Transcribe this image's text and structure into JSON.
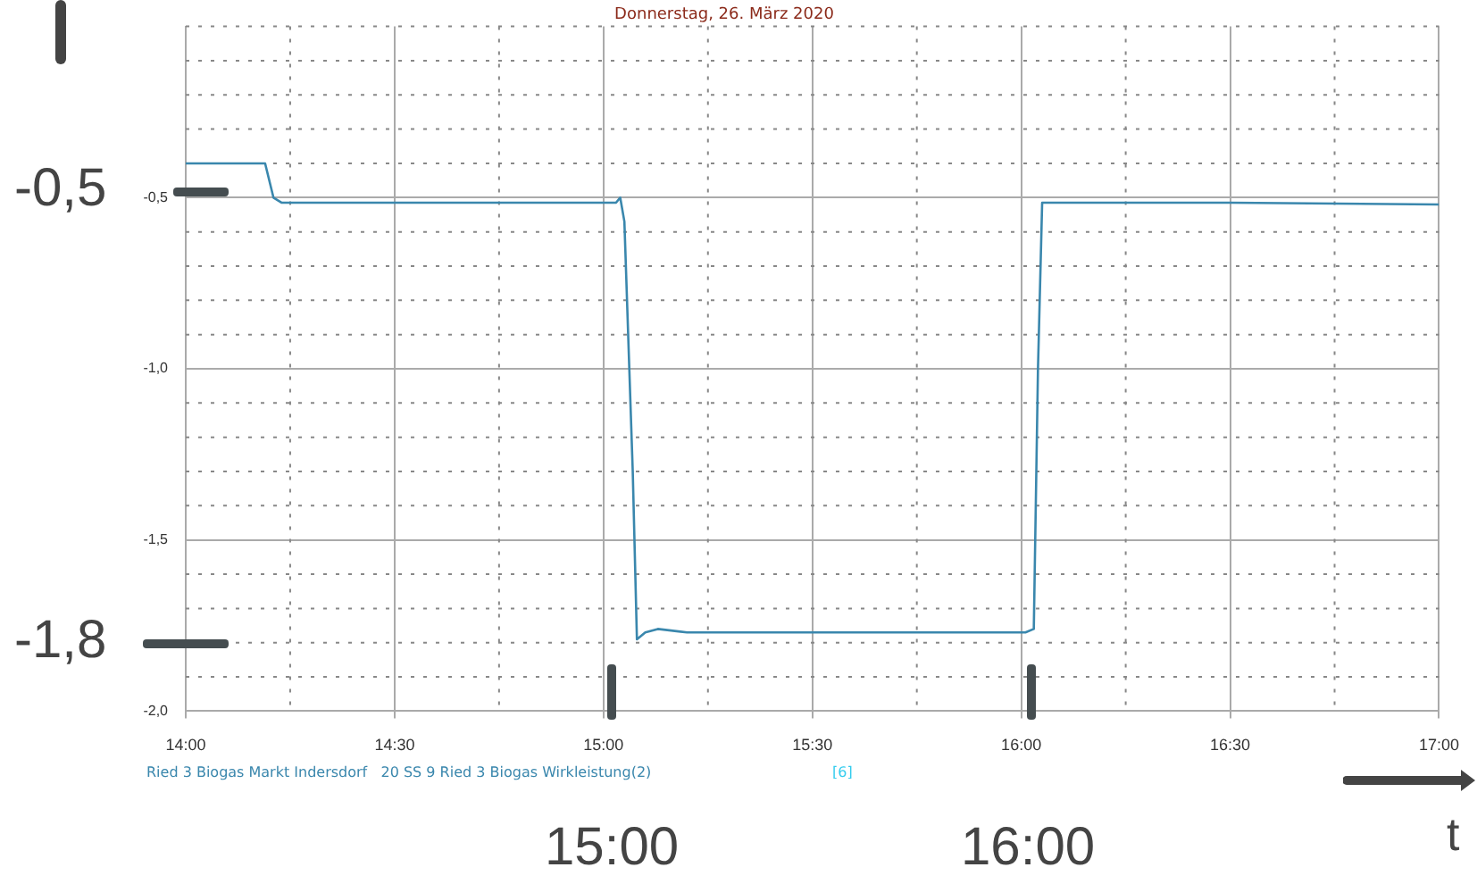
{
  "chart_data": {
    "type": "line",
    "title": "Donnerstag, 26. März 2020",
    "xlabel": "t",
    "x": [
      14.0,
      14.19,
      14.21,
      14.23,
      15.03,
      15.04,
      15.05,
      15.07,
      15.08,
      15.1,
      15.13,
      15.2,
      15.5,
      15.8,
      16.01,
      16.03,
      16.04,
      16.05,
      16.5,
      17.0
    ],
    "series": [
      {
        "name": "Ried 3 Biogas Markt Indersdorf   20 SS 9 Ried 3 Biogas Wirkleistung(2)",
        "color": "#3a87ad",
        "values": [
          -0.4,
          -0.4,
          -0.5,
          -0.515,
          -0.515,
          -0.5,
          -0.57,
          -1.3,
          -1.79,
          -1.77,
          -1.76,
          -1.77,
          -1.77,
          -1.77,
          -1.77,
          -1.76,
          -1.0,
          -0.515,
          -0.515,
          -0.52
        ]
      }
    ],
    "xlim": [
      14,
      17
    ],
    "xticks": [
      {
        "value": 14,
        "label": "14:00"
      },
      {
        "value": 14.25,
        "label": null
      },
      {
        "value": 14.5,
        "label": "14:30"
      },
      {
        "value": 14.75,
        "label": null
      },
      {
        "value": 15,
        "label": "15:00"
      },
      {
        "value": 15.25,
        "label": null
      },
      {
        "value": 15.5,
        "label": "15:30"
      },
      {
        "value": 15.75,
        "label": null
      },
      {
        "value": 16,
        "label": "16:00"
      },
      {
        "value": 16.25,
        "label": null
      },
      {
        "value": 16.5,
        "label": "16:30"
      },
      {
        "value": 16.75,
        "label": null
      },
      {
        "value": 17,
        "label": "17:00"
      }
    ],
    "ylim": [
      -2,
      0
    ],
    "yticks": [
      {
        "value": -2,
        "label": "-2,0"
      },
      {
        "value": -1.9,
        "label": null
      },
      {
        "value": -1.8,
        "label": null
      },
      {
        "value": -1.7,
        "label": null
      },
      {
        "value": -1.6,
        "label": null
      },
      {
        "value": -1.5,
        "label": "-1,5"
      },
      {
        "value": -1.4,
        "label": null
      },
      {
        "value": -1.3,
        "label": null
      },
      {
        "value": -1.2,
        "label": null
      },
      {
        "value": -1.1,
        "label": null
      },
      {
        "value": -1,
        "label": "-1,0"
      },
      {
        "value": -0.9,
        "label": null
      },
      {
        "value": -0.8,
        "label": null
      },
      {
        "value": -0.7,
        "label": null
      },
      {
        "value": -0.6,
        "label": null
      },
      {
        "value": -0.5,
        "label": "-0,5"
      },
      {
        "value": -0.4,
        "label": null
      },
      {
        "value": -0.3,
        "label": null
      },
      {
        "value": -0.2,
        "label": null
      },
      {
        "value": -0.1,
        "label": null
      },
      {
        "value": 0,
        "label": null
      }
    ],
    "grid": true,
    "legend": "bottom left",
    "marker": "none",
    "annotations": [
      "-0,5",
      "-1,8",
      "15:00",
      "16:00",
      "[6]"
    ]
  }
}
